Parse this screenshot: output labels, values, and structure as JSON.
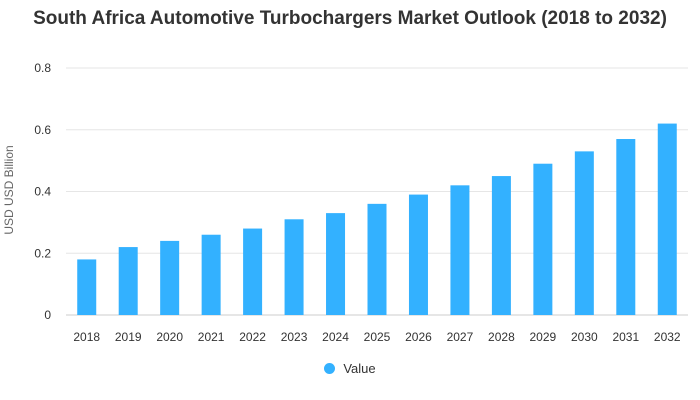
{
  "colors": {
    "bar": "#33b1ff",
    "grid": "#e6e6e6",
    "axis_text": "#333333",
    "title_text": "#333333"
  },
  "chart_data": {
    "type": "bar",
    "title": "South Africa Automotive Turbochargers Market Outlook (2018 to 2032)",
    "xlabel": "",
    "ylabel": "USD USD Billion",
    "categories": [
      "2018",
      "2019",
      "2020",
      "2021",
      "2022",
      "2023",
      "2024",
      "2025",
      "2026",
      "2027",
      "2028",
      "2029",
      "2030",
      "2031",
      "2032"
    ],
    "series": [
      {
        "name": "Value",
        "values": [
          0.18,
          0.22,
          0.24,
          0.26,
          0.28,
          0.31,
          0.33,
          0.36,
          0.39,
          0.42,
          0.45,
          0.49,
          0.53,
          0.57,
          0.62
        ]
      }
    ],
    "ylim": [
      0,
      0.8
    ],
    "yticks": [
      "0",
      "0.2",
      "0.4",
      "0.6",
      "0.8"
    ],
    "grid": true,
    "legend_position": "bottom"
  }
}
